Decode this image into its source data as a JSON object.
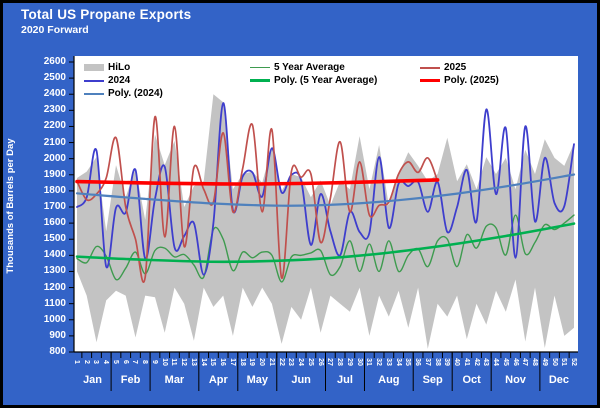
{
  "title": "Total US Propane Exports",
  "subtitle": "2020 Forward",
  "colors": {
    "background_blue": "#3363C7",
    "frame_border": "#000000",
    "plot_background": "#FFFFFF",
    "axis_text": "#FFFFFF",
    "hilo_gray": "#C3C3C3",
    "series_2024_blue": "#3E3ECD",
    "series_2025_red": "#C0504D",
    "avg5_green": "#3E9B4F",
    "poly_2024_steelblue": "#4F81BD",
    "poly_5yr_green": "#00B050",
    "poly_2025_red": "#FF0000"
  },
  "legend": {
    "columns": [
      {
        "items": [
          {
            "label": "HiLo",
            "swatch": "band",
            "color": "#C3C3C3"
          },
          {
            "label": "2024",
            "swatch": "line",
            "color": "#3E3ECD",
            "weight": 2
          },
          {
            "label": "Poly. (2024)",
            "swatch": "line",
            "color": "#4F81BD",
            "weight": 2
          }
        ]
      },
      {
        "items": [
          {
            "label": "5 Year Average",
            "swatch": "line",
            "color": "#3E9B4F",
            "weight": 1.5
          },
          {
            "label": "Poly. (5 Year Average)",
            "swatch": "line",
            "color": "#00B050",
            "weight": 3
          }
        ]
      },
      {
        "items": [
          {
            "label": "2025",
            "swatch": "line",
            "color": "#C0504D",
            "weight": 2
          },
          {
            "label": "Poly. (2025)",
            "swatch": "line",
            "color": "#FF0000",
            "weight": 3.5
          }
        ]
      }
    ]
  },
  "chart_data": {
    "type": "line",
    "title": "Total US Propane Exports",
    "subtitle": "2020 Forward",
    "xlabel": "",
    "ylabel": "Thousands of Barrels per Day",
    "ylim": [
      800,
      2600
    ],
    "y_ticks": [
      800,
      900,
      1000,
      1100,
      1200,
      1300,
      1400,
      1500,
      1600,
      1700,
      1800,
      1900,
      2000,
      2100,
      2200,
      2300,
      2400,
      2500,
      2600
    ],
    "grid": false,
    "legend_position": "top",
    "x_week_labels": [
      1,
      2,
      3,
      4,
      5,
      6,
      7,
      8,
      9,
      10,
      11,
      12,
      13,
      14,
      15,
      16,
      17,
      18,
      19,
      20,
      21,
      22,
      23,
      24,
      25,
      26,
      27,
      28,
      29,
      30,
      31,
      32,
      33,
      34,
      35,
      36,
      37,
      38,
      39,
      40,
      41,
      42,
      43,
      44,
      45,
      46,
      47,
      48,
      49,
      50,
      51,
      52
    ],
    "months": [
      {
        "label": "Jan",
        "weeks": 4
      },
      {
        "label": "Feb",
        "weeks": 4
      },
      {
        "label": "Mar",
        "weeks": 5
      },
      {
        "label": "Apr",
        "weeks": 4
      },
      {
        "label": "May",
        "weeks": 4
      },
      {
        "label": "Jun",
        "weeks": 5
      },
      {
        "label": "Jul",
        "weeks": 4
      },
      {
        "label": "Aug",
        "weeks": 5
      },
      {
        "label": "Sep",
        "weeks": 4
      },
      {
        "label": "Oct",
        "weeks": 4
      },
      {
        "label": "Nov",
        "weeks": 5
      },
      {
        "label": "Dec",
        "weeks": 4
      }
    ],
    "series": [
      {
        "name": "HiLo",
        "type": "band",
        "color": "#C3C3C3",
        "high": [
          1880,
          1920,
          2010,
          1550,
          1960,
          1760,
          1940,
          1620,
          2150,
          1960,
          2110,
          1700,
          1830,
          1860,
          2400,
          2350,
          1810,
          1905,
          1920,
          1850,
          2070,
          1800,
          1905,
          1885,
          1760,
          1865,
          1710,
          1860,
          1810,
          2140,
          1810,
          2085,
          1710,
          1905,
          2040,
          1955,
          1860,
          1905,
          2130,
          1860,
          1965,
          1810,
          2010,
          1905,
          2005,
          1810,
          2055,
          1905,
          2120,
          2005,
          1955,
          2095
        ],
        "low": [
          1300,
          1150,
          860,
          1120,
          1180,
          1150,
          890,
          1150,
          1140,
          920,
          1200,
          1100,
          870,
          1200,
          1080,
          1150,
          900,
          1200,
          1080,
          1200,
          1100,
          850,
          1080,
          1000,
          1200,
          920,
          1150,
          1100,
          1050,
          1200,
          900,
          1150,
          1020,
          1180,
          950,
          1200,
          820,
          1100,
          1020,
          1150,
          880,
          1100,
          970,
          1180,
          1050,
          1250,
          865,
          1200,
          825,
          1150,
          900,
          950
        ]
      },
      {
        "name": "5 Year Average",
        "type": "line",
        "color": "#3E9B4F",
        "width": 1.4,
        "values": [
          1380,
          1355,
          1455,
          1395,
          1250,
          1320,
          1420,
          1285,
          1430,
          1445,
          1390,
          1405,
          1340,
          1265,
          1560,
          1500,
          1305,
          1420,
          1385,
          1420,
          1400,
          1235,
          1390,
          1400,
          1415,
          1430,
          1280,
          1330,
          1490,
          1300,
          1470,
          1300,
          1490,
          1300,
          1400,
          1440,
          1330,
          1490,
          1500,
          1330,
          1528,
          1445,
          1580,
          1570,
          1402,
          1650,
          1410,
          1480,
          1590,
          1560,
          1600,
          1650
        ]
      },
      {
        "name": "2024",
        "type": "line",
        "color": "#3E3ECD",
        "width": 1.8,
        "values": [
          1700,
          1760,
          2050,
          1330,
          1695,
          1665,
          1930,
          1380,
          1750,
          1950,
          1450,
          1520,
          1600,
          1280,
          1600,
          2345,
          1680,
          1890,
          1915,
          1765,
          2065,
          1790,
          1900,
          1865,
          1465,
          1780,
          1550,
          1400,
          1670,
          1545,
          1540,
          2010,
          1570,
          1845,
          1830,
          1855,
          1670,
          1855,
          1545,
          1700,
          1930,
          1610,
          2305,
          1780,
          2190,
          1385,
          2200,
          1610,
          2005,
          1725,
          1705,
          2090
        ]
      },
      {
        "name": "2025",
        "type": "line",
        "color": "#C0504D",
        "width": 1.7,
        "values": [
          1860,
          1745,
          1780,
          1880,
          2130,
          1700,
          1500,
          1265,
          2260,
          1515,
          2200,
          1455,
          1945,
          1810,
          1730,
          2160,
          1670,
          1940,
          2210,
          1670,
          2180,
          1260,
          1920,
          1885,
          1905,
          1480,
          1755,
          2105,
          1670,
          1980,
          1650,
          1710,
          1730,
          1905,
          1980,
          1915,
          2005,
          1860
        ]
      },
      {
        "name": "Poly. (2024)",
        "type": "trend",
        "color": "#4F81BD",
        "width": 2.2,
        "points": [
          [
            1,
            1785
          ],
          [
            8,
            1750
          ],
          [
            15,
            1722
          ],
          [
            22,
            1708
          ],
          [
            28,
            1716
          ],
          [
            34,
            1742
          ],
          [
            40,
            1783
          ],
          [
            46,
            1838
          ],
          [
            52,
            1902
          ]
        ]
      },
      {
        "name": "Poly. (5 Year Average)",
        "type": "trend",
        "color": "#00B050",
        "width": 2.6,
        "points": [
          [
            1,
            1392
          ],
          [
            8,
            1372
          ],
          [
            16,
            1360
          ],
          [
            24,
            1372
          ],
          [
            31,
            1404
          ],
          [
            38,
            1455
          ],
          [
            45,
            1520
          ],
          [
            52,
            1597
          ]
        ]
      },
      {
        "name": "Poly. (2025)",
        "type": "trend",
        "color": "#FF0000",
        "width": 3.6,
        "points": [
          [
            1,
            1858
          ],
          [
            10,
            1847
          ],
          [
            19,
            1843
          ],
          [
            28,
            1851
          ],
          [
            38,
            1868
          ]
        ]
      }
    ]
  }
}
